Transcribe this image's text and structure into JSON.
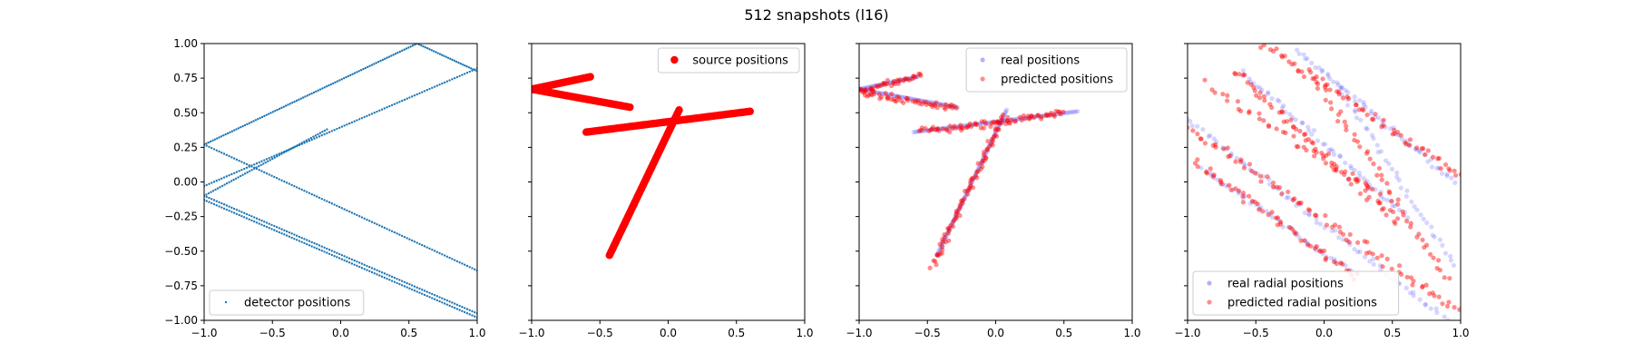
{
  "figure": {
    "title": "512 snapshots (l16)"
  },
  "colors": {
    "detector": "#1f77b4",
    "source": "#ff0000",
    "real": "#0000ff",
    "predicted": "#ff0000"
  },
  "chart_data": [
    {
      "type": "scatter",
      "xlim": [
        -1,
        1
      ],
      "ylim": [
        -1,
        1
      ],
      "xticks": [
        "−1.0",
        "−0.5",
        "0.0",
        "0.5",
        "1.0"
      ],
      "yticks": [
        "−1.00",
        "−0.75",
        "−0.50",
        "−0.25",
        "0.00",
        "0.25",
        "0.50",
        "0.75",
        "1.00"
      ],
      "legend": "lower-left",
      "series": [
        {
          "name": "detector positions",
          "segments": [
            {
              "from": [
                -1.0,
                0.27
              ],
              "to": [
                0.56,
                1.0
              ],
              "n": 100
            },
            {
              "from": [
                0.56,
                1.0
              ],
              "to": [
                1.0,
                0.8
              ],
              "n": 30
            },
            {
              "from": [
                -1.0,
                0.27
              ],
              "to": [
                1.0,
                -0.64
              ],
              "n": 110
            },
            {
              "from": [
                -1.0,
                -0.03
              ],
              "to": [
                1.0,
                0.82
              ],
              "n": 110
            },
            {
              "from": [
                -1.0,
                -0.1
              ],
              "to": [
                1.0,
                -0.95
              ],
              "n": 110
            },
            {
              "from": [
                -1.0,
                -0.13
              ],
              "to": [
                1.0,
                -0.98
              ],
              "n": 110
            },
            {
              "from": [
                -1.0,
                -0.1
              ],
              "to": [
                -0.1,
                0.38
              ],
              "n": 55
            }
          ]
        }
      ]
    },
    {
      "type": "scatter",
      "xlim": [
        -1,
        1
      ],
      "ylim": [
        -1,
        1
      ],
      "xticks": [
        "−1.0",
        "−0.5",
        "0.0",
        "0.5",
        "1.0"
      ],
      "legend": "upper-right",
      "series": [
        {
          "name": "source positions",
          "segments": [
            {
              "from": [
                -1.0,
                0.67
              ],
              "to": [
                -0.57,
                0.76
              ],
              "n": 45
            },
            {
              "from": [
                -1.0,
                0.67
              ],
              "to": [
                -0.28,
                0.54
              ],
              "n": 60
            },
            {
              "from": [
                -0.6,
                0.36
              ],
              "to": [
                0.6,
                0.51
              ],
              "n": 100
            },
            {
              "from": [
                -0.43,
                -0.53
              ],
              "to": [
                0.08,
                0.52
              ],
              "n": 100
            }
          ]
        }
      ]
    },
    {
      "type": "scatter",
      "xlim": [
        -1,
        1
      ],
      "ylim": [
        -1,
        1
      ],
      "xticks": [
        "−1.0",
        "−0.5",
        "0.0",
        "0.5",
        "1.0"
      ],
      "legend": "upper-right",
      "series": [
        {
          "name": "real positions",
          "segments": [
            {
              "from": [
                -1.0,
                0.67
              ],
              "to": [
                -0.57,
                0.76
              ],
              "n": 40
            },
            {
              "from": [
                -1.0,
                0.67
              ],
              "to": [
                -0.28,
                0.54
              ],
              "n": 55
            },
            {
              "from": [
                -0.6,
                0.36
              ],
              "to": [
                0.6,
                0.51
              ],
              "n": 90
            },
            {
              "from": [
                -0.43,
                -0.53
              ],
              "to": [
                0.08,
                0.52
              ],
              "n": 90
            }
          ]
        },
        {
          "name": "predicted positions",
          "jitter": 0.035,
          "segments": [
            {
              "from": [
                -1.0,
                0.65
              ],
              "to": [
                -0.55,
                0.77
              ],
              "n": 40
            },
            {
              "from": [
                -1.0,
                0.65
              ],
              "to": [
                -0.28,
                0.53
              ],
              "n": 55
            },
            {
              "from": [
                -0.55,
                0.36
              ],
              "to": [
                0.5,
                0.5
              ],
              "n": 80
            },
            {
              "from": [
                -0.46,
                -0.6
              ],
              "to": [
                0.06,
                0.48
              ],
              "n": 85
            }
          ]
        }
      ]
    },
    {
      "type": "scatter",
      "xlim": [
        -1,
        1
      ],
      "ylim": [
        -1,
        1
      ],
      "xticks": [
        "−1.0",
        "−0.5",
        "0.0",
        "0.5",
        "1.0"
      ],
      "legend": "lower-left",
      "series": [
        {
          "name": "real radial positions",
          "jitter": 0.03,
          "segments": [
            {
              "from": [
                -1.0,
                0.45
              ],
              "to": [
                0.9,
                -1.0
              ],
              "n": 70
            },
            {
              "from": [
                -0.6,
                0.8
              ],
              "to": [
                0.6,
                -0.25
              ],
              "n": 55
            },
            {
              "from": [
                -0.2,
                0.95
              ],
              "to": [
                0.95,
                0.0
              ],
              "n": 55
            },
            {
              "from": [
                -0.9,
                0.1
              ],
              "to": [
                0.2,
                -0.65
              ],
              "n": 45
            },
            {
              "from": [
                0.1,
                0.7
              ],
              "to": [
                0.95,
                -0.6
              ],
              "n": 40
            }
          ]
        },
        {
          "name": "predicted radial positions",
          "jitter": 0.05,
          "segments": [
            {
              "from": [
                -1.0,
                0.4
              ],
              "to": [
                1.0,
                -0.95
              ],
              "n": 80
            },
            {
              "from": [
                -0.65,
                0.8
              ],
              "to": [
                0.55,
                -0.3
              ],
              "n": 65
            },
            {
              "from": [
                -0.45,
                1.0
              ],
              "to": [
                1.0,
                0.05
              ],
              "n": 65
            },
            {
              "from": [
                -0.95,
                0.15
              ],
              "to": [
                0.25,
                -0.7
              ],
              "n": 55
            },
            {
              "from": [
                -0.1,
                0.8
              ],
              "to": [
                0.9,
                -0.7
              ],
              "n": 50
            },
            {
              "from": [
                -0.85,
                0.7
              ],
              "to": [
                0.4,
                -0.1
              ],
              "n": 40
            }
          ]
        }
      ]
    }
  ]
}
